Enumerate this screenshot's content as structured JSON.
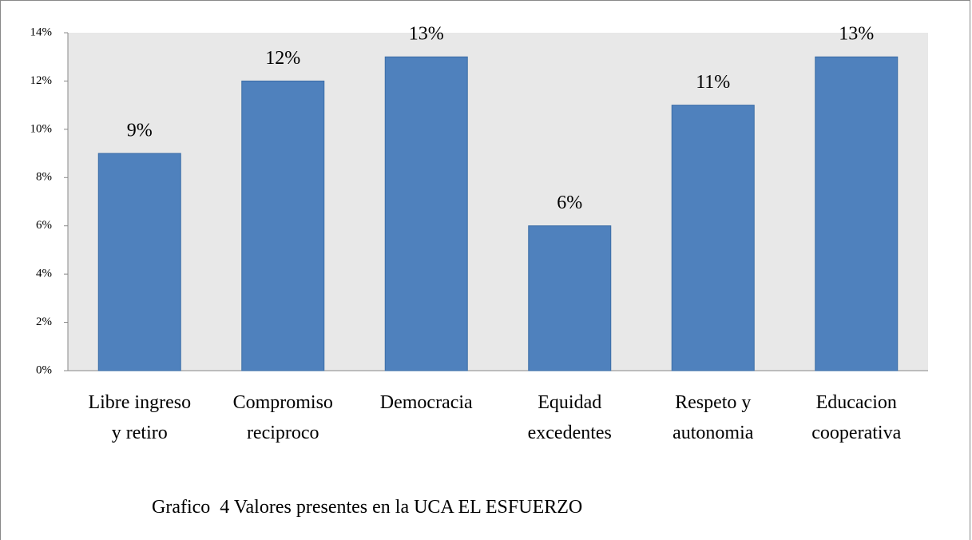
{
  "chart_data": {
    "type": "bar",
    "caption": "Grafico  4 Valores presentes en la UCA EL ESFUERZO",
    "categories": [
      "Libre ingreso\ny retiro",
      "Compromiso\nreciproco",
      "Democracia",
      "Equidad\nexcedentes",
      "Respeto y\nautonomia",
      "Educacion\ncooperativa"
    ],
    "values": [
      9,
      12,
      13,
      6,
      11,
      13
    ],
    "value_labels": [
      "9%",
      "12%",
      "13%",
      "6%",
      "11%",
      "13%"
    ],
    "color": "#4f81bd",
    "ylim": [
      0,
      14
    ],
    "yticks": [
      {
        "value": 0,
        "label": "0%"
      },
      {
        "value": 2,
        "label": "2%"
      },
      {
        "value": 4,
        "label": "4%"
      },
      {
        "value": 6,
        "label": "6%"
      },
      {
        "value": 8,
        "label": "8%"
      },
      {
        "value": 10,
        "label": "10%"
      },
      {
        "value": 12,
        "label": "12%"
      },
      {
        "value": 14,
        "label": "14%"
      }
    ],
    "grid": false
  }
}
